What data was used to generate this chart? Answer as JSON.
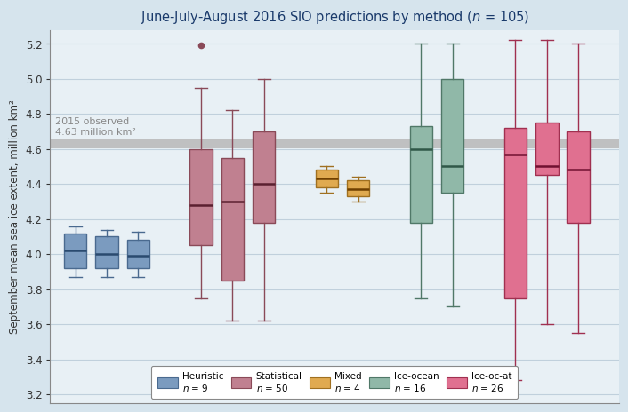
{
  "title_text": "June-July-August 2016 SIO predictions by method ($n$ = 105)",
  "ylabel": "September mean sea ice extent, million km²",
  "observed_line": 4.63,
  "observed_label": "2015 observed\n4.63 million km²",
  "ylim": [
    3.15,
    5.28
  ],
  "yticks": [
    3.2,
    3.4,
    3.6,
    3.8,
    4.0,
    4.2,
    4.4,
    4.6,
    4.8,
    5.0,
    5.2
  ],
  "background_color": "#d6e4ed",
  "plot_background": "#e8f0f5",
  "grid_color": "#c0d0dc",
  "colors": {
    "Heuristic": {
      "face": "#7b9bbf",
      "edge": "#4a6a8f",
      "median": "#2a4a6f"
    },
    "Statistical": {
      "face": "#c08090",
      "edge": "#8a4a58",
      "median": "#5a2030"
    },
    "Mixed": {
      "face": "#e0aa50",
      "edge": "#a07020",
      "median": "#704000"
    },
    "Ice-ocean": {
      "face": "#90b8a8",
      "edge": "#507868",
      "median": "#305848"
    },
    "Ice-oc-at": {
      "face": "#e07090",
      "edge": "#a03050",
      "median": "#701030"
    }
  },
  "legend_labels": [
    "Heuristic",
    "Statistical",
    "Mixed",
    "Ice-ocean",
    "Ice-oc-at"
  ],
  "legend_n": [
    9,
    50,
    4,
    16,
    26
  ],
  "boxes": {
    "Heuristic": [
      {
        "x": 1.0,
        "whislo": 3.87,
        "q1": 3.92,
        "med": 4.02,
        "q3": 4.12,
        "whishi": 4.16,
        "fliers": []
      },
      {
        "x": 2.0,
        "whislo": 3.87,
        "q1": 3.92,
        "med": 4.0,
        "q3": 4.1,
        "whishi": 4.14,
        "fliers": []
      },
      {
        "x": 3.0,
        "whislo": 3.87,
        "q1": 3.92,
        "med": 3.99,
        "q3": 4.08,
        "whishi": 4.13,
        "fliers": []
      }
    ],
    "Statistical": [
      {
        "x": 5.0,
        "whislo": 3.75,
        "q1": 4.05,
        "med": 4.28,
        "q3": 4.6,
        "whishi": 4.95,
        "fliers": [
          5.19
        ]
      },
      {
        "x": 6.0,
        "whislo": 3.62,
        "q1": 3.85,
        "med": 4.3,
        "q3": 4.55,
        "whishi": 4.82,
        "fliers": []
      },
      {
        "x": 7.0,
        "whislo": 3.62,
        "q1": 4.18,
        "med": 4.4,
        "q3": 4.7,
        "whishi": 5.0,
        "fliers": []
      }
    ],
    "Mixed": [
      {
        "x": 9.0,
        "whislo": 4.35,
        "q1": 4.38,
        "med": 4.43,
        "q3": 4.48,
        "whishi": 4.5,
        "fliers": []
      },
      {
        "x": 10.0,
        "whislo": 4.3,
        "q1": 4.33,
        "med": 4.37,
        "q3": 4.42,
        "whishi": 4.44,
        "fliers": []
      }
    ],
    "Ice-ocean": [
      {
        "x": 12.0,
        "whislo": 3.75,
        "q1": 4.18,
        "med": 4.6,
        "q3": 4.73,
        "whishi": 5.2,
        "fliers": []
      },
      {
        "x": 13.0,
        "whislo": 3.7,
        "q1": 4.35,
        "med": 4.5,
        "q3": 5.0,
        "whishi": 5.2,
        "fliers": []
      }
    ],
    "Ice-oc-at": [
      {
        "x": 15.0,
        "whislo": 3.28,
        "q1": 3.75,
        "med": 4.57,
        "q3": 4.72,
        "whishi": 5.22,
        "fliers": []
      },
      {
        "x": 16.0,
        "whislo": 3.6,
        "q1": 4.45,
        "med": 4.5,
        "q3": 4.75,
        "whishi": 5.22,
        "fliers": []
      },
      {
        "x": 17.0,
        "whislo": 3.55,
        "q1": 4.18,
        "med": 4.48,
        "q3": 4.7,
        "whishi": 5.2,
        "fliers": []
      }
    ]
  },
  "xlim": [
    0.2,
    18.3
  ],
  "box_width": 0.72
}
